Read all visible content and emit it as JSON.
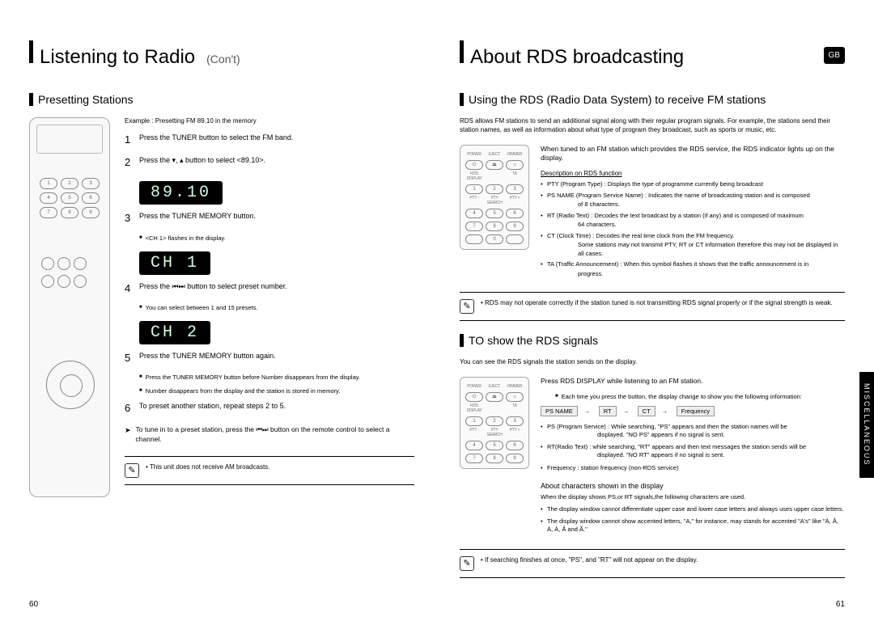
{
  "leftPage": {
    "heading": "Listening to Radio",
    "cont": "(Con't)",
    "subHeading": "Presetting Stations",
    "example": "Example : Presetting FM 89.10 in the memory",
    "steps": {
      "s1": {
        "n": "1",
        "t": "Press the TUNER button to select the FM band."
      },
      "s2": {
        "n": "2",
        "t": "Press the  ▾, ▴  button to select <89.10>."
      },
      "s3": {
        "n": "3",
        "t": "Press the TUNER MEMORY button."
      },
      "s4": {
        "n": "4",
        "t": "Press the  ⏮⏭  button to select preset number."
      },
      "s5": {
        "n": "5",
        "t": "Press the TUNER MEMORY button again."
      },
      "s6": {
        "n": "6",
        "t": "To preset another station, repeat steps 2 to 5."
      }
    },
    "lcd1": "89.10",
    "lcd2": "CH  1",
    "lcd3": "CH  2",
    "note3": "<CH 1> flashes in the display.",
    "note4": "You can select between 1 and 15 presets.",
    "note5a": "Press the TUNER MEMORY button before  Number    disappears from the display.",
    "note5b": "Number    disappears from the display and the station is stored in memory.",
    "tuneNote": "To tune in to a preset station, press the  ⏮⏭  button on the remote control to select a channel.",
    "infoNote": "• This unit does not receive AM broadcasts.",
    "pageNum": "60"
  },
  "rightPage": {
    "heading": "About RDS broadcasting",
    "gb": "GB",
    "sub1": "Using the RDS (Radio Data System) to receive FM stations",
    "intro": "RDS allows FM stations to send an additional signal along with their regular program signals. For example, the stations send their station names, as well as information about what type of program they broadcast, such as sports or music, etc.",
    "lead1": "When tuned to an FM station which provides the RDS service, the RDS indicator lights up on the display.",
    "descHdr": "Description on RDS function",
    "funcs": {
      "a": "PTY (Program Type) : Displays the type of programme currently being broadcast",
      "b": "PS NAME (Program Service Name) : Indicates the name of broadcasting station and is composed",
      "b2": "of 8 characters.",
      "c": "RT (Radio Text) : Decodes the text broadcast by a station (if any) and is composed of maximum",
      "c2": "64 characters.",
      "d": "CT (Clock Time) : Decodes the real time clock from the FM frequency.",
      "d2": "Some stations may not transmit PTY, RT or CT information therefore this may not be displayed in all cases.",
      "e": "TA (Traffic Announcement) : When this symbol flashes it shows that the traffic announcement is in",
      "e2": "progress."
    },
    "info1": "• RDS may not operate correctly if the station tuned is not transmitting RDS signal properly or if the signal strength is weak.",
    "sub2": "TO show the RDS signals",
    "seeSig": "You can see the RDS signals the station sends on the display.",
    "lead2": "Press RDS DISPLAY while listening to an FM station.",
    "lead2note": "Each time you press the button, the display change to show you the following information:",
    "seq": {
      "a": "PS NAME",
      "b": "RT",
      "c": "CT",
      "d": "Frequency"
    },
    "sig": {
      "ps1": "PS (Program Service) : While searching, \"PS\" appears and then the station names will be",
      "ps2": "displayed. \"NO PS\" appears if no signal is sent.",
      "rt1": "RT(Radio Text) : while searching, \"RT\" appears and then text messages the station sends will be",
      "rt2": "displayed. \"NO RT\" appears if no signal is sent.",
      "fr": "Frequency : station frequency (non-RDS service)"
    },
    "charHdr": "About characters shown in the display",
    "charSub": "When the display shows PS,or RT signals,the following characters are used.",
    "char1": "The display window cannot differentiate upper case and lower case letters and always uses upper case letters.",
    "char2": "The display window cannot show accented letters, \"A,\" for instance, may stands for accented \"A's\" like \"À, Â, Ä, Á, Å and Ã.\"",
    "info2": "• If searching finishes at once, \"PS\", and \"RT\" will not appear on the display.",
    "sideTab": "MISCELLANEOUS",
    "pageNum": "61"
  },
  "miniLabels": {
    "row1": {
      "a": "POWER",
      "b": "EJECT",
      "c": "DIMMER"
    },
    "row2": {
      "a": "RDS DISPLAY",
      "b": "",
      "c": "TA"
    },
    "row3": {
      "a": "PTY -",
      "b": "PTY SEARCH",
      "c": "PTY +"
    }
  },
  "colors": {
    "black": "#000000",
    "lcdText": "#ccffdd",
    "border": "#aaaaaa"
  }
}
